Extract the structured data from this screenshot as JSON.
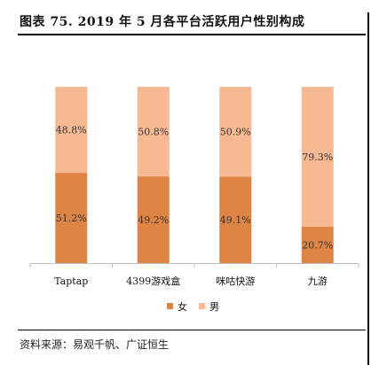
{
  "title": "图表 75. 2019 年 5 月各平台活跃用户性别构成",
  "source": "资料来源：易观千帆、广证恒生",
  "colors": {
    "female": "#de8444",
    "male": "#f6b993",
    "axis": "#bfbfbf"
  },
  "chart_data": {
    "type": "bar",
    "stacked": true,
    "percent": true,
    "categories": [
      "Taptap",
      "4399游戏盒",
      "咪咕快游",
      "九游"
    ],
    "series": [
      {
        "name": "女",
        "values": [
          51.2,
          49.2,
          49.1,
          20.7
        ],
        "labels": [
          "51.2%",
          "49.2%",
          "49.1%",
          "20.7%"
        ]
      },
      {
        "name": "男",
        "values": [
          48.8,
          50.8,
          50.9,
          79.3
        ],
        "labels": [
          "48.8%",
          "50.8%",
          "50.9%",
          "79.3%"
        ]
      }
    ],
    "ylim": [
      0,
      100
    ],
    "grid": false,
    "legend_position": "bottom"
  }
}
